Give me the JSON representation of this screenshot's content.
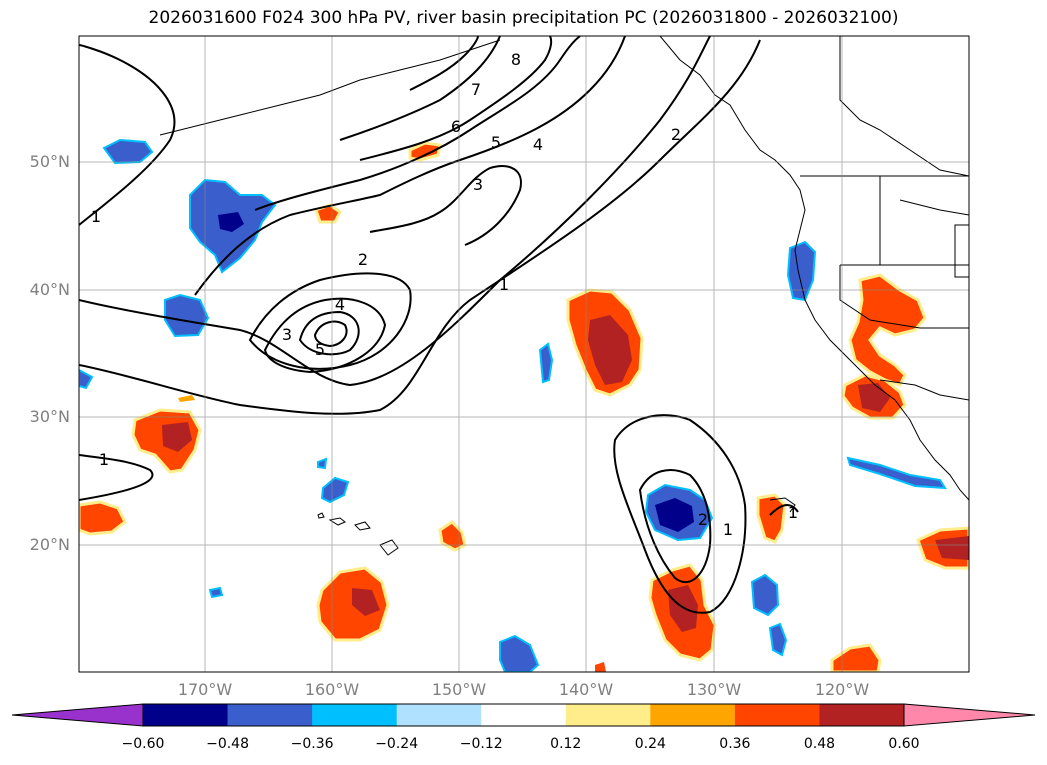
{
  "title": "2026031600 F024 300 hPa PV, river basin precipitation PC (2026031800 - 2026032100)",
  "lat_labels": [
    "50°N",
    "40°N",
    "30°N",
    "20°N"
  ],
  "lon_labels": [
    "170°W",
    "160°W",
    "150°W",
    "140°W",
    "130°W",
    "120°W"
  ],
  "contour_labels": [
    "1",
    "1",
    "1",
    "1",
    "1",
    "2",
    "2",
    "2",
    "3",
    "3",
    "4",
    "4",
    "5",
    "5",
    "6",
    "7",
    "8"
  ],
  "colorbar": {
    "ticks": [
      "−0.60",
      "−0.48",
      "−0.36",
      "−0.24",
      "−0.12",
      "0.12",
      "0.24",
      "0.36",
      "0.48",
      "0.60"
    ],
    "colors": [
      "#9932cc",
      "#00008b",
      "#3a5fcd",
      "#00bfff",
      "#b0e2ff",
      "#ffffff",
      "#ffec8b",
      "#ffa500",
      "#ff4500",
      "#b22222",
      "#ff88aa"
    ]
  }
}
